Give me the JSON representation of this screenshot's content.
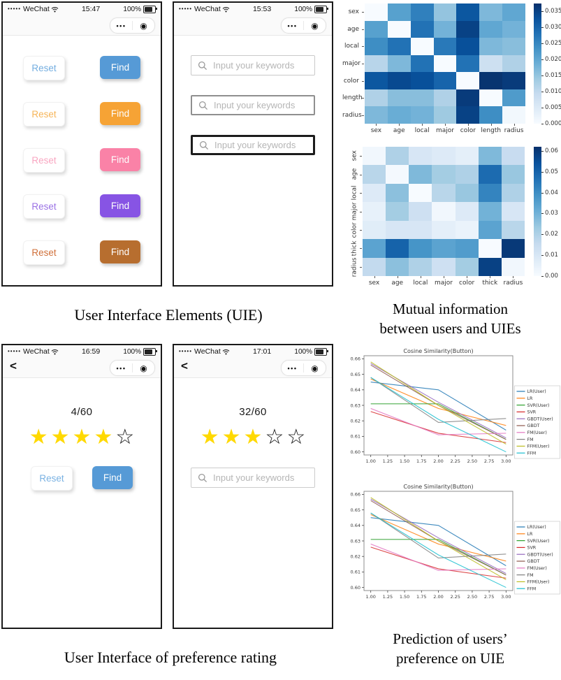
{
  "figure": {
    "captions": {
      "uie": "User Interface Elements (UIE)",
      "mutual_line1": "Mutual information",
      "mutual_line2": "between users and UIEs",
      "rating": "User Interface of preference rating",
      "prediction_line1": "Prediction of users’",
      "prediction_line2": "preference on UIE"
    }
  },
  "glyphs": {
    "star_filled": "★",
    "star_empty": "☆",
    "menu_dots": "•••",
    "target": "◉",
    "back_arrow": "<",
    "signal_dots": "•••••"
  },
  "phones": {
    "buttons_screen": {
      "status": {
        "carrier": "WeChat",
        "time": "15:47",
        "battery": "100%"
      },
      "rows": [
        {
          "reset_label": "Reset",
          "find_label": "Find",
          "accent": "#569ad6",
          "reset_text": "#74aee0"
        },
        {
          "reset_label": "Reset",
          "find_label": "Find",
          "accent": "#f6a335",
          "reset_text": "#f6b559"
        },
        {
          "reset_label": "Reset",
          "find_label": "Find",
          "accent": "#fa82a7",
          "reset_text": "#f9a6c1"
        },
        {
          "reset_label": "Reset",
          "find_label": "Find",
          "accent": "#8754e4",
          "reset_text": "#9b72e5"
        },
        {
          "reset_label": "Reset",
          "find_label": "Find",
          "accent": "#b76e2f",
          "reset_text": "#d0703a"
        }
      ]
    },
    "search_screen": {
      "status": {
        "carrier": "WeChat",
        "time": "15:53",
        "battery": "100%"
      },
      "inputs": [
        {
          "placeholder": "Input your keywords",
          "border_width": 1,
          "border_color": "#c9c9c9"
        },
        {
          "placeholder": "Input your keywords",
          "border_width": 2,
          "border_color": "#8f8f8f"
        },
        {
          "placeholder": "Input your keywords",
          "border_width": 3,
          "border_color": "#1c1c1c"
        }
      ]
    },
    "rating_screen_1": {
      "status": {
        "carrier": "WeChat",
        "time": "16:59",
        "battery": "100%"
      },
      "counter": "4/60",
      "stars": {
        "filled": 4,
        "total": 5
      },
      "reset_label": "Reset",
      "find_label": "Find",
      "accent": "#569ad6",
      "reset_text": "#79b1e2"
    },
    "rating_screen_2": {
      "status": {
        "carrier": "WeChat",
        "time": "17:01",
        "battery": "100%"
      },
      "counter": "32/60",
      "stars": {
        "filled": 3,
        "total": 5
      },
      "search_placeholder": "Input your keywords"
    }
  },
  "chart_data": [
    {
      "type": "heatmap",
      "title": "",
      "labels": [
        "sex",
        "age",
        "local",
        "major",
        "color",
        "length",
        "radius"
      ],
      "vmin": 0.0,
      "vmax": 0.0375,
      "values": [
        [
          0.0,
          0.021,
          0.026,
          0.015,
          0.032,
          0.017,
          0.02
        ],
        [
          0.021,
          0.0,
          0.028,
          0.018,
          0.035,
          0.02,
          0.018
        ],
        [
          0.024,
          0.028,
          0.0,
          0.027,
          0.033,
          0.017,
          0.016
        ],
        [
          0.011,
          0.017,
          0.028,
          0.0,
          0.028,
          0.008,
          0.012
        ],
        [
          0.032,
          0.034,
          0.033,
          0.03,
          0.0,
          0.037,
          0.036
        ],
        [
          0.012,
          0.016,
          0.016,
          0.012,
          0.036,
          0.0,
          0.022
        ],
        [
          0.017,
          0.019,
          0.018,
          0.014,
          0.035,
          0.024,
          0.001
        ]
      ],
      "colorbar_ticks": [
        {
          "v": 0.035,
          "label": "0.035"
        },
        {
          "v": 0.03,
          "label": "0.030"
        },
        {
          "v": 0.025,
          "label": "0.025"
        },
        {
          "v": 0.02,
          "label": "0.020"
        },
        {
          "v": 0.015,
          "label": "0.015"
        },
        {
          "v": 0.01,
          "label": "0.010"
        },
        {
          "v": 0.005,
          "label": "0.005"
        },
        {
          "v": 0.0,
          "label": "0.000"
        }
      ],
      "colormap": "Blues"
    },
    {
      "type": "heatmap",
      "title": "",
      "labels": [
        "sex",
        "age",
        "local",
        "major",
        "color",
        "thick",
        "radius"
      ],
      "vmin": 0.0,
      "vmax": 0.062,
      "values": [
        [
          0.002,
          0.02,
          0.01,
          0.008,
          0.006,
          0.028,
          0.015
        ],
        [
          0.018,
          0.001,
          0.028,
          0.022,
          0.02,
          0.048,
          0.024
        ],
        [
          0.008,
          0.026,
          0.0,
          0.018,
          0.024,
          0.042,
          0.02
        ],
        [
          0.005,
          0.022,
          0.013,
          0.002,
          0.008,
          0.03,
          0.01
        ],
        [
          0.007,
          0.01,
          0.01,
          0.006,
          0.004,
          0.034,
          0.018
        ],
        [
          0.034,
          0.05,
          0.038,
          0.034,
          0.036,
          0.0,
          0.06
        ],
        [
          0.016,
          0.026,
          0.02,
          0.013,
          0.022,
          0.058,
          0.002
        ]
      ],
      "colorbar_ticks": [
        {
          "v": 0.06,
          "label": "0.06"
        },
        {
          "v": 0.05,
          "label": "0.05"
        },
        {
          "v": 0.04,
          "label": "0.04"
        },
        {
          "v": 0.03,
          "label": "0.03"
        },
        {
          "v": 0.02,
          "label": "0.02"
        },
        {
          "v": 0.01,
          "label": "0.01"
        },
        {
          "v": 0.0,
          "label": "0.00"
        }
      ],
      "colormap": "Blues"
    },
    {
      "type": "line",
      "title": "Cosine Similarity(Button)",
      "x": [
        1,
        2,
        3
      ],
      "xlim": [
        0.9,
        3.1
      ],
      "ylim": [
        0.598,
        0.662
      ],
      "grid": false,
      "legend_position": "right",
      "xticks": [
        {
          "v": 1.0,
          "label": "1.00"
        },
        {
          "v": 1.25,
          "label": "1.25"
        },
        {
          "v": 1.5,
          "label": "1.50"
        },
        {
          "v": 1.75,
          "label": "1.75"
        },
        {
          "v": 2.0,
          "label": "2.00"
        },
        {
          "v": 2.25,
          "label": "2.25"
        },
        {
          "v": 2.5,
          "label": "2.50"
        },
        {
          "v": 2.75,
          "label": "2.75"
        },
        {
          "v": 3.0,
          "label": "3.00"
        }
      ],
      "yticks": [
        {
          "v": 0.6,
          "label": "0.60"
        },
        {
          "v": 0.61,
          "label": "0.61"
        },
        {
          "v": 0.62,
          "label": "0.62"
        },
        {
          "v": 0.63,
          "label": "0.63"
        },
        {
          "v": 0.64,
          "label": "0.64"
        },
        {
          "v": 0.65,
          "label": "0.65"
        },
        {
          "v": 0.66,
          "label": "0.66"
        }
      ],
      "series": [
        {
          "name": "LR(User)",
          "color": "#1f77b4",
          "values": [
            0.645,
            0.64,
            0.614
          ]
        },
        {
          "name": "LR",
          "color": "#ff7f0e",
          "values": [
            0.647,
            0.628,
            0.617
          ]
        },
        {
          "name": "SVR(User)",
          "color": "#2ca02c",
          "values": [
            0.631,
            0.631,
            0.608
          ]
        },
        {
          "name": "SVR",
          "color": "#d62728",
          "values": [
            0.626,
            0.612,
            0.606
          ]
        },
        {
          "name": "GBDT(User)",
          "color": "#9467bd",
          "values": [
            0.657,
            0.632,
            0.609
          ]
        },
        {
          "name": "GBDT",
          "color": "#8c564b",
          "values": [
            0.656,
            0.63,
            0.608
          ]
        },
        {
          "name": "FM(User)",
          "color": "#e377c2",
          "values": [
            0.628,
            0.611,
            0.612
          ]
        },
        {
          "name": "FM",
          "color": "#7f7f7f",
          "values": [
            0.648,
            0.619,
            0.6215
          ]
        },
        {
          "name": "FFM(User)",
          "color": "#bcbd22",
          "values": [
            0.658,
            0.63,
            0.605
          ]
        },
        {
          "name": "FFM",
          "color": "#17becf",
          "values": [
            0.648,
            0.621,
            0.6
          ]
        }
      ]
    },
    {
      "type": "line",
      "title": "Cosine Similarity(Button)",
      "x": [
        1,
        2,
        3
      ],
      "xlim": [
        0.9,
        3.1
      ],
      "ylim": [
        0.598,
        0.662
      ],
      "grid": false,
      "legend_position": "right",
      "xticks": [
        {
          "v": 1.0,
          "label": "1.00"
        },
        {
          "v": 1.25,
          "label": "1.25"
        },
        {
          "v": 1.5,
          "label": "1.50"
        },
        {
          "v": 1.75,
          "label": "1.75"
        },
        {
          "v": 2.0,
          "label": "2.00"
        },
        {
          "v": 2.25,
          "label": "2.25"
        },
        {
          "v": 2.5,
          "label": "2.50"
        },
        {
          "v": 2.75,
          "label": "2.75"
        },
        {
          "v": 3.0,
          "label": "3.00"
        }
      ],
      "yticks": [
        {
          "v": 0.6,
          "label": "0.60"
        },
        {
          "v": 0.61,
          "label": "0.61"
        },
        {
          "v": 0.62,
          "label": "0.62"
        },
        {
          "v": 0.63,
          "label": "0.63"
        },
        {
          "v": 0.64,
          "label": "0.64"
        },
        {
          "v": 0.65,
          "label": "0.65"
        },
        {
          "v": 0.66,
          "label": "0.66"
        }
      ],
      "series": [
        {
          "name": "LR(User)",
          "color": "#1f77b4",
          "values": [
            0.645,
            0.64,
            0.614
          ]
        },
        {
          "name": "LR",
          "color": "#ff7f0e",
          "values": [
            0.647,
            0.628,
            0.617
          ]
        },
        {
          "name": "SVR(User)",
          "color": "#2ca02c",
          "values": [
            0.631,
            0.631,
            0.608
          ]
        },
        {
          "name": "SVR",
          "color": "#d62728",
          "values": [
            0.626,
            0.612,
            0.606
          ]
        },
        {
          "name": "GBDT(User)",
          "color": "#9467bd",
          "values": [
            0.657,
            0.632,
            0.609
          ]
        },
        {
          "name": "GBDT",
          "color": "#8c564b",
          "values": [
            0.656,
            0.63,
            0.608
          ]
        },
        {
          "name": "FM(User)",
          "color": "#e377c2",
          "values": [
            0.628,
            0.611,
            0.612
          ]
        },
        {
          "name": "FM",
          "color": "#7f7f7f",
          "values": [
            0.648,
            0.619,
            0.6215
          ]
        },
        {
          "name": "FFM(User)",
          "color": "#bcbd22",
          "values": [
            0.658,
            0.63,
            0.605
          ]
        },
        {
          "name": "FFM",
          "color": "#17becf",
          "values": [
            0.648,
            0.621,
            0.6
          ]
        }
      ]
    }
  ]
}
